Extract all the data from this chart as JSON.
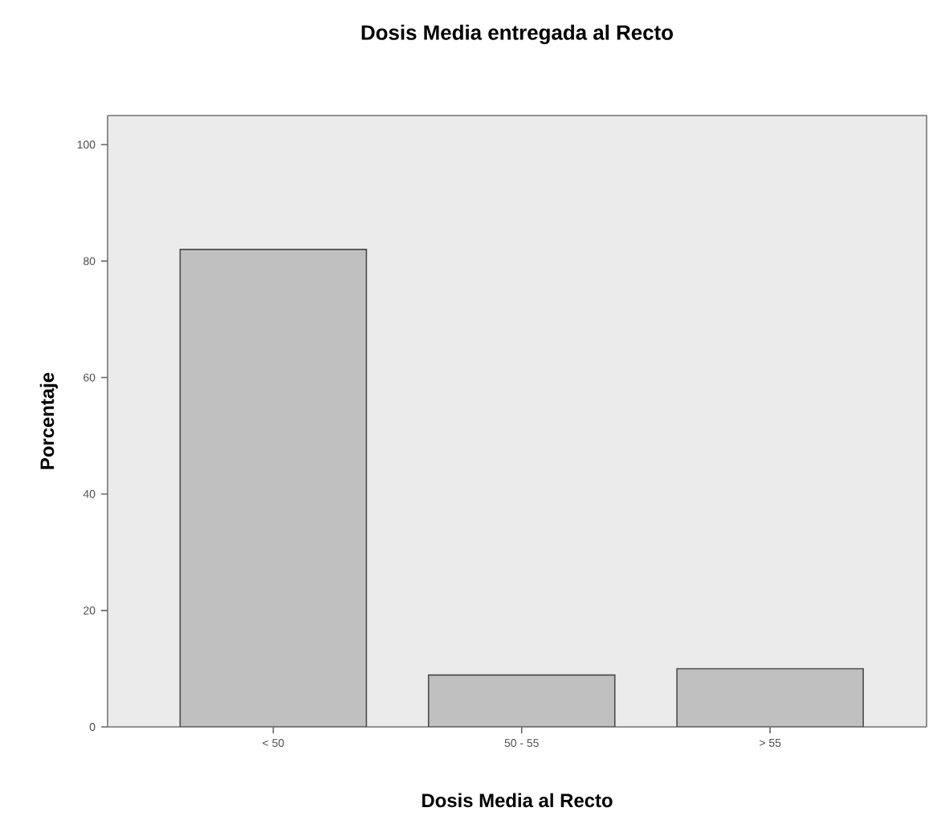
{
  "chart_data": {
    "type": "bar",
    "title": "Dosis Media entregada al Recto",
    "xlabel": "Dosis Media al Recto",
    "ylabel": "Porcentaje",
    "categories": [
      "< 50",
      "50 - 55",
      "> 55"
    ],
    "values": [
      82,
      8.9,
      10
    ],
    "color": "#c0c0c0",
    "ylim": [
      0,
      105
    ],
    "yticks": [
      0,
      20,
      40,
      60,
      80,
      100
    ],
    "grid": false
  }
}
